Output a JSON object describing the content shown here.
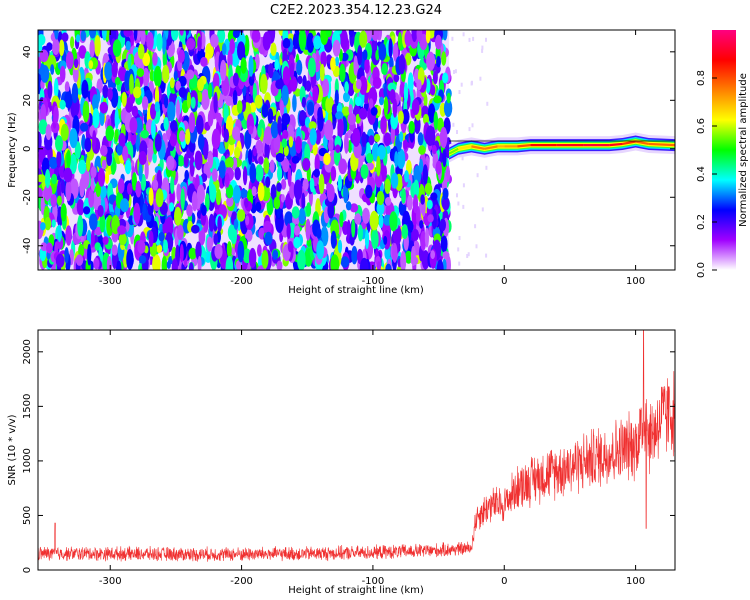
{
  "title": "C2E2.2023.354.12.23.G24",
  "chart_data": [
    {
      "type": "heatmap",
      "xlabel": "Height of straight line (km)",
      "ylabel": "Frequency (Hz)",
      "xlim": [
        -355,
        130
      ],
      "ylim": [
        -50,
        49
      ],
      "xticks": [
        -300,
        -200,
        -100,
        0,
        100
      ],
      "yticks": [
        -40,
        -20,
        0,
        20,
        40
      ],
      "colorbar": {
        "label": "Normalized spectral amplitude",
        "range": [
          0,
          1
        ],
        "ticks": [
          "0.0",
          "0.2",
          "0.4",
          "0.6",
          "0.8"
        ],
        "colors": [
          "#ffffff",
          "#a000ff",
          "#0000ff",
          "#00ffff",
          "#00ff00",
          "#ffff00",
          "#ff8000",
          "#ff0000",
          "#ff0080"
        ]
      },
      "noise_region_x": [
        -355,
        -42
      ],
      "trace": {
        "x": [
          -42,
          -35,
          -25,
          -15,
          -5,
          0,
          10,
          20,
          40,
          60,
          80,
          90,
          100,
          110,
          130
        ],
        "freq": [
          -2,
          0,
          1,
          0,
          1,
          1,
          1,
          1.5,
          1.5,
          1.5,
          1.5,
          2,
          3,
          2,
          1.5
        ],
        "amplitude": [
          0.5,
          0.6,
          0.7,
          0.8,
          0.7,
          0.7,
          0.75,
          0.85,
          0.9,
          0.9,
          0.95,
          0.85,
          0.8,
          0.75,
          0.8
        ]
      },
      "grid": false
    },
    {
      "type": "line",
      "xlabel": "Height of straight line (km)",
      "ylabel": "SNR (10 * v/v)",
      "xlim": [
        -355,
        130
      ],
      "ylim": [
        0,
        2200
      ],
      "xticks": [
        -300,
        -200,
        -100,
        0,
        100
      ],
      "yticks": [
        0,
        500,
        1000,
        1500,
        2000
      ],
      "color": "#f03030",
      "x": [
        -355,
        -300,
        -250,
        -200,
        -150,
        -100,
        -50,
        -25,
        -22,
        -20,
        -10,
        0,
        10,
        25,
        50,
        75,
        100,
        105,
        108,
        110,
        120,
        130
      ],
      "y": [
        150,
        150,
        145,
        145,
        150,
        160,
        180,
        200,
        450,
        500,
        600,
        600,
        760,
        850,
        950,
        1050,
        1150,
        1300,
        1500,
        1200,
        1400,
        1450
      ],
      "spikes": [
        {
          "x": -342,
          "y": 430
        },
        {
          "x": 106,
          "y": 2200
        },
        {
          "x": 108,
          "y": 380
        }
      ],
      "grid": false
    }
  ]
}
